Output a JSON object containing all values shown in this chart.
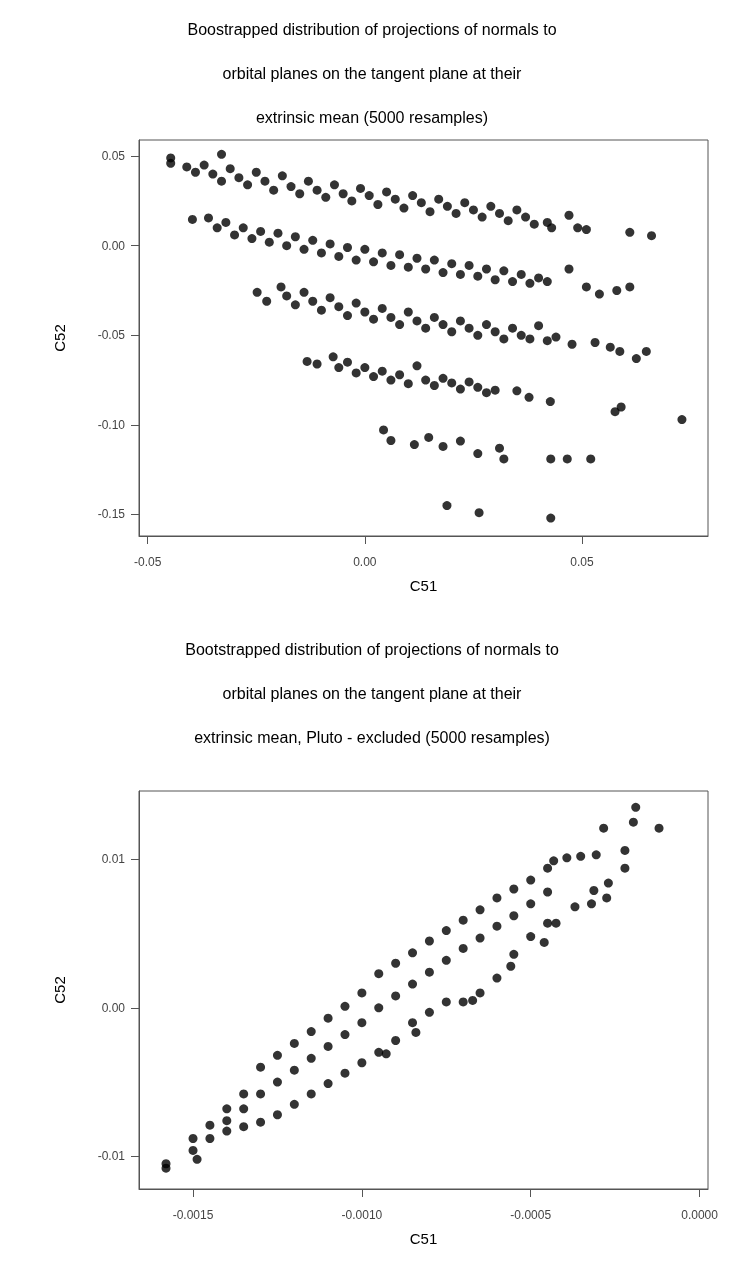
{
  "chart_data": [
    {
      "type": "scatter",
      "title": "Boostrapped distribution of projections of normals to\norbital planes on the tangent plane at their\nextrinsic mean (5000 resamples)",
      "xlabel": "C51",
      "ylabel": "C52",
      "color": "#000000",
      "marker": "circle",
      "xlim": [
        -0.052,
        0.079
      ],
      "ylim": [
        -0.162,
        0.059
      ],
      "xticks": [
        {
          "value": -0.05,
          "label": "-0.05"
        },
        {
          "value": 0,
          "label": "0.00"
        },
        {
          "value": 0.05,
          "label": "0.05"
        }
      ],
      "yticks": [
        {
          "value": -0.15,
          "label": "-0.15"
        },
        {
          "value": -0.1,
          "label": "-0.10"
        },
        {
          "value": -0.05,
          "label": "-0.05"
        },
        {
          "value": 0,
          "label": "0.00"
        },
        {
          "value": 0.05,
          "label": "0.05"
        }
      ],
      "x": [
        -0.0447,
        -0.0447,
        -0.041,
        -0.039,
        -0.037,
        -0.035,
        -0.033,
        -0.033,
        -0.031,
        -0.029,
        -0.027,
        -0.025,
        -0.023,
        -0.021,
        -0.019,
        -0.017,
        -0.015,
        -0.013,
        -0.011,
        -0.009,
        -0.007,
        -0.005,
        -0.003,
        -0.001,
        0.001,
        0.003,
        0.005,
        0.007,
        0.009,
        0.011,
        0.013,
        0.015,
        0.017,
        0.019,
        0.021,
        0.023,
        0.025,
        0.027,
        0.029,
        0.031,
        0.033,
        0.035,
        0.037,
        0.039,
        0.042,
        0.043,
        0.047,
        0.049,
        0.051,
        0.061,
        0.066,
        -0.0397,
        -0.036,
        -0.034,
        -0.032,
        -0.03,
        -0.028,
        -0.026,
        -0.024,
        -0.022,
        -0.02,
        -0.018,
        -0.016,
        -0.014,
        -0.012,
        -0.01,
        -0.008,
        -0.006,
        -0.004,
        -0.002,
        0.0,
        0.002,
        0.004,
        0.006,
        0.008,
        0.01,
        0.012,
        0.014,
        0.016,
        0.018,
        0.02,
        0.022,
        0.024,
        0.026,
        0.028,
        0.03,
        0.032,
        0.034,
        0.036,
        0.038,
        0.04,
        0.042,
        0.047,
        0.051,
        0.054,
        0.058,
        0.061,
        -0.0248,
        -0.0226,
        -0.0193,
        -0.018,
        -0.016,
        -0.014,
        -0.012,
        -0.01,
        -0.008,
        -0.006,
        -0.004,
        -0.002,
        0.0,
        0.002,
        0.004,
        0.006,
        0.008,
        0.01,
        0.012,
        0.014,
        0.016,
        0.018,
        0.02,
        0.022,
        0.024,
        0.026,
        0.028,
        0.03,
        0.032,
        0.034,
        0.036,
        0.038,
        0.04,
        0.042,
        0.044,
        0.0477,
        0.053,
        0.0565,
        0.0587,
        0.0625,
        0.0648,
        -0.0133,
        -0.011,
        -0.0073,
        -0.006,
        -0.004,
        -0.002,
        0.0,
        0.002,
        0.004,
        0.006,
        0.008,
        0.01,
        0.012,
        0.014,
        0.016,
        0.018,
        0.02,
        0.022,
        0.024,
        0.026,
        0.028,
        0.03,
        0.035,
        0.0378,
        0.0427,
        0.0576,
        0.059,
        0.073,
        0.0043,
        0.006,
        0.0114,
        0.0147,
        0.018,
        0.022,
        0.026,
        0.031,
        0.032,
        0.0428,
        0.0466,
        0.052,
        0.0189,
        0.0263,
        0.0428
      ],
      "values": [
        0.049,
        0.046,
        0.044,
        0.041,
        0.045,
        0.04,
        0.051,
        0.036,
        0.043,
        0.038,
        0.034,
        0.041,
        0.036,
        0.031,
        0.039,
        0.033,
        0.029,
        0.036,
        0.031,
        0.027,
        0.034,
        0.029,
        0.025,
        0.032,
        0.028,
        0.023,
        0.03,
        0.026,
        0.021,
        0.028,
        0.024,
        0.019,
        0.026,
        0.022,
        0.018,
        0.024,
        0.02,
        0.016,
        0.022,
        0.018,
        0.014,
        0.02,
        0.016,
        0.012,
        0.013,
        0.01,
        0.017,
        0.01,
        0.009,
        0.0075,
        0.0056,
        0.0147,
        0.0155,
        0.01,
        0.013,
        0.006,
        0.01,
        0.004,
        0.008,
        0.002,
        0.007,
        0.0,
        0.005,
        -0.002,
        0.003,
        -0.004,
        0.001,
        -0.006,
        -0.001,
        -0.008,
        -0.002,
        -0.009,
        -0.004,
        -0.011,
        -0.005,
        -0.012,
        -0.007,
        -0.013,
        -0.008,
        -0.015,
        -0.01,
        -0.016,
        -0.011,
        -0.017,
        -0.013,
        -0.019,
        -0.014,
        -0.02,
        -0.016,
        -0.021,
        -0.018,
        -0.02,
        -0.013,
        -0.023,
        -0.027,
        -0.025,
        -0.023,
        -0.026,
        -0.031,
        -0.023,
        -0.028,
        -0.033,
        -0.026,
        -0.031,
        -0.036,
        -0.029,
        -0.034,
        -0.039,
        -0.032,
        -0.037,
        -0.041,
        -0.035,
        -0.04,
        -0.044,
        -0.037,
        -0.042,
        -0.046,
        -0.04,
        -0.044,
        -0.048,
        -0.042,
        -0.046,
        -0.05,
        -0.044,
        -0.048,
        -0.052,
        -0.046,
        -0.05,
        -0.052,
        -0.0446,
        -0.053,
        -0.051,
        -0.055,
        -0.054,
        -0.0566,
        -0.059,
        -0.063,
        -0.059,
        -0.0646,
        -0.066,
        -0.062,
        -0.068,
        -0.065,
        -0.071,
        -0.068,
        -0.073,
        -0.07,
        -0.075,
        -0.072,
        -0.077,
        -0.067,
        -0.075,
        -0.078,
        -0.074,
        -0.0766,
        -0.08,
        -0.076,
        -0.079,
        -0.082,
        -0.0806,
        -0.081,
        -0.0846,
        -0.087,
        -0.0926,
        -0.09,
        -0.097,
        -0.1028,
        -0.1087,
        -0.111,
        -0.107,
        -0.112,
        -0.109,
        -0.116,
        -0.113,
        -0.119,
        -0.119,
        -0.119,
        -0.119,
        -0.145,
        -0.149,
        -0.152
      ]
    },
    {
      "type": "scatter",
      "title": "Bootstrapped distribution of projections of normals to\norbital planes on the tangent plane at their\nextrinsic mean, Pluto - excluded (5000 resamples)",
      "xlabel": "C51",
      "ylabel": "C52",
      "color": "#000000",
      "marker": "circle",
      "xlim": [
        -0.00166,
        2.5e-05
      ],
      "ylim": [
        -0.0122,
        0.0146
      ],
      "xticks": [
        {
          "value": -0.0015,
          "label": "-0.0015"
        },
        {
          "value": -0.001,
          "label": "-0.0010"
        },
        {
          "value": -0.0005,
          "label": "-0.0005"
        },
        {
          "value": 0,
          "label": "0.0000"
        }
      ],
      "yticks": [
        {
          "value": -0.01,
          "label": "-0.01"
        },
        {
          "value": 0,
          "label": "0.00"
        },
        {
          "value": 0.01,
          "label": "0.01"
        }
      ],
      "x": [
        -0.00158,
        -0.00158,
        -0.0015,
        -0.0015,
        -0.00145,
        -0.00145,
        -0.0014,
        -0.0014,
        -0.0014,
        -0.00135,
        -0.00135,
        -0.00135,
        -0.0013,
        -0.0013,
        -0.0013,
        -0.00125,
        -0.00125,
        -0.00125,
        -0.0012,
        -0.0012,
        -0.0012,
        -0.00115,
        -0.00115,
        -0.00115,
        -0.0011,
        -0.0011,
        -0.0011,
        -0.00105,
        -0.00105,
        -0.00105,
        -0.001,
        -0.001,
        -0.001,
        -0.00095,
        -0.00095,
        -0.00095,
        -0.0009,
        -0.0009,
        -0.0009,
        -0.00085,
        -0.00085,
        -0.00085,
        -0.0008,
        -0.0008,
        -0.0008,
        -0.00075,
        -0.00075,
        -0.00075,
        -0.0007,
        -0.0007,
        -0.0007,
        -0.00065,
        -0.00065,
        -0.00065,
        -0.0006,
        -0.0006,
        -0.0006,
        -0.00055,
        -0.00055,
        -0.00055,
        -0.0005,
        -0.0005,
        -0.0005,
        -0.00045,
        -0.00045,
        -0.00045,
        -0.001488,
        -0.000928,
        -0.000672,
        -0.00084,
        -0.000559,
        -0.00046,
        -0.000425,
        -0.000369,
        -0.00032,
        -0.000275,
        -0.00027,
        -0.000313,
        -0.000221,
        -0.000221,
        -0.000284,
        -0.000196,
        -0.000189,
        -0.00012,
        -0.000432,
        -0.000393,
        -0.000352,
        -0.000306
      ],
      "values": [
        -0.0105,
        -0.0108,
        -0.0088,
        -0.0096,
        -0.0079,
        -0.0088,
        -0.0068,
        -0.0076,
        -0.0083,
        -0.0058,
        -0.0068,
        -0.008,
        -0.004,
        -0.0058,
        -0.0077,
        -0.0032,
        -0.005,
        -0.0072,
        -0.0024,
        -0.0042,
        -0.0065,
        -0.0016,
        -0.0034,
        -0.0058,
        -0.0007,
        -0.0026,
        -0.0051,
        0.0001,
        -0.0018,
        -0.0044,
        0.001,
        -0.001,
        -0.0037,
        0.0023,
        0.0,
        -0.003,
        0.003,
        0.0008,
        -0.0022,
        0.0037,
        0.0016,
        -0.001,
        0.0045,
        0.0024,
        -0.0003,
        0.0052,
        0.0032,
        0.0004,
        0.0059,
        0.004,
        0.0004,
        0.0066,
        0.0047,
        0.001,
        0.0074,
        0.0055,
        0.002,
        0.008,
        0.0062,
        0.0036,
        0.0086,
        0.007,
        0.0048,
        0.0094,
        0.0078,
        0.0057,
        -0.0102,
        -0.0031,
        0.0005,
        -0.00166,
        0.0028,
        0.0044,
        0.0057,
        0.0068,
        0.007,
        0.0074,
        0.0084,
        0.0079,
        0.0094,
        0.0106,
        0.0121,
        0.0125,
        0.0135,
        0.0121,
        0.0099,
        0.0101,
        0.0102,
        0.0103
      ]
    }
  ]
}
